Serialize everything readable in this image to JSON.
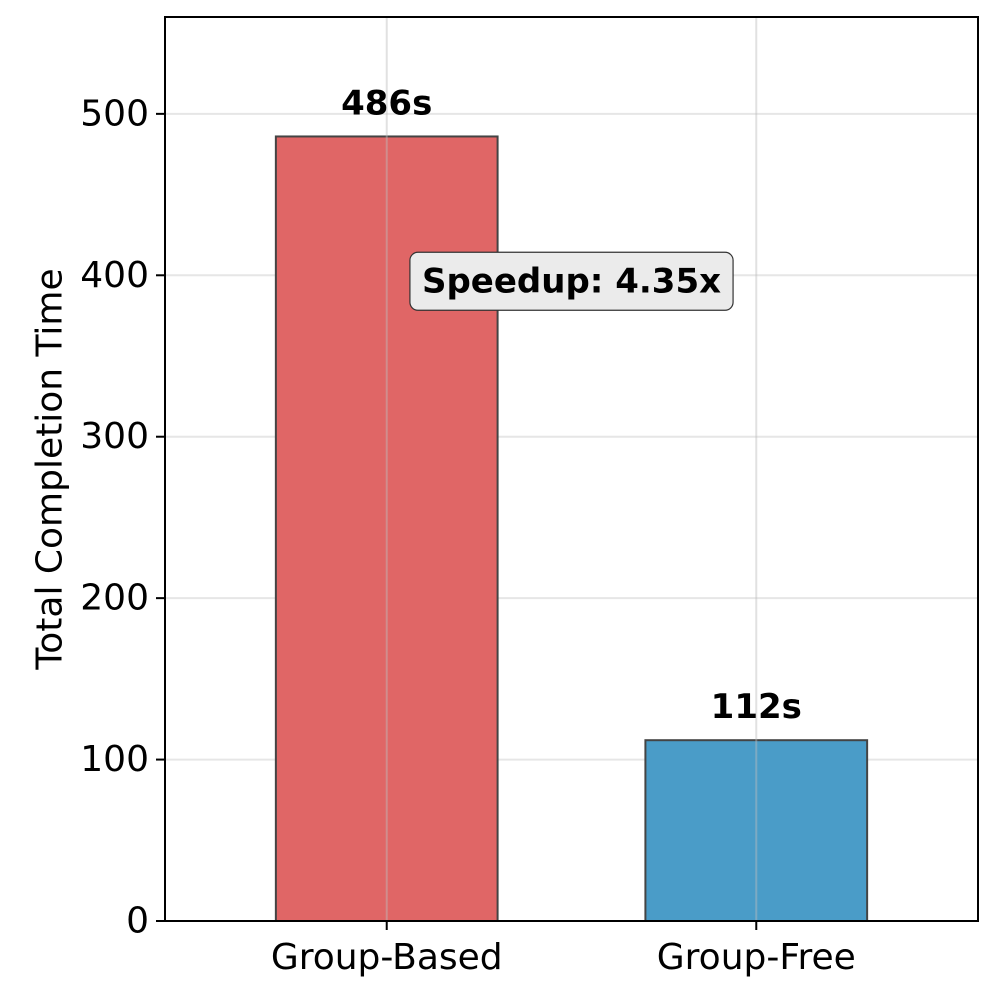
{
  "chart_data": {
    "type": "bar",
    "title": "",
    "xlabel": "",
    "ylabel": "Total Completion Time",
    "categories": [
      "Group-Based",
      "Group-Free"
    ],
    "values": [
      486,
      112
    ],
    "value_labels": [
      "486s",
      "112s"
    ],
    "colors": [
      "#e06666",
      "#4a9cc8"
    ],
    "edge_color": "#444444",
    "ylim": [
      0,
      560
    ],
    "yticks": [
      0,
      100,
      200,
      300,
      400,
      500
    ],
    "ytick_labels": [
      "0",
      "100",
      "200",
      "300",
      "400",
      "500"
    ],
    "grid": true,
    "annotation": {
      "text": "Speedup: 4.35x",
      "y": 400
    }
  }
}
